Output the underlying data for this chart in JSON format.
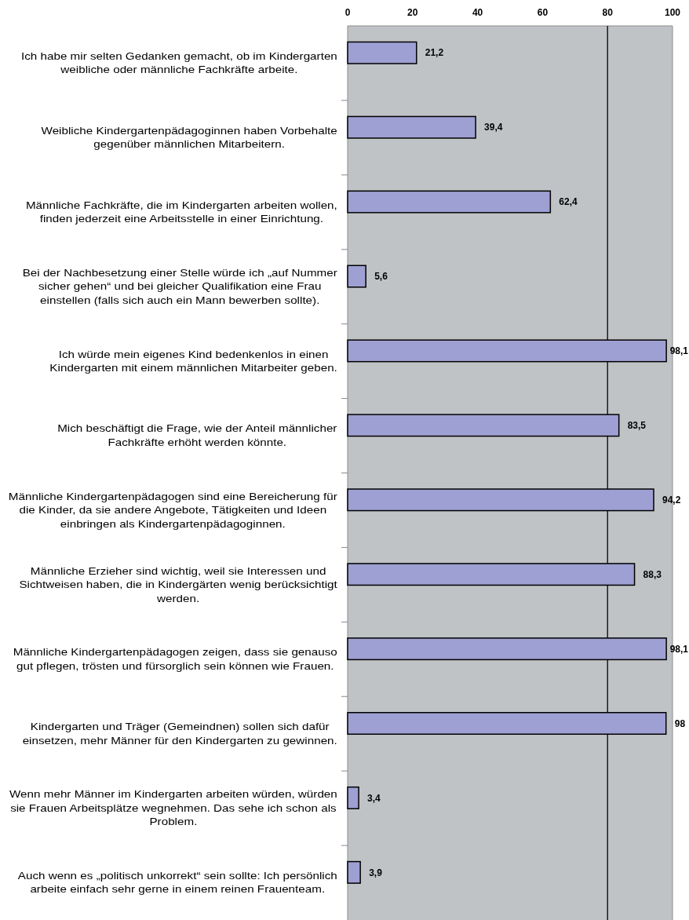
{
  "chart_data": {
    "type": "bar",
    "orientation": "horizontal",
    "categories": [
      "Ich habe mir selten Gedanken gemacht, ob im Kindergarten weibliche oder männliche Fachkräfte arbeite.",
      "Weibliche Kindergartenpädagoginnen haben Vorbehalte gegenüber männlichen Mitarbeitern.",
      "Männliche Fachkräfte, die im Kindergarten arbeiten wollen, finden jederzeit eine Arbeitsstelle in einer Einrichtung.",
      "Bei der Nachbesetzung einer Stelle würde ich „auf Nummer sicher gehen“ und bei gleicher Qualifikation eine Frau einstellen (falls sich auch ein Mann bewerben sollte).",
      "Ich würde mein eigenes Kind bedenkenlos in einen Kindergarten mit einem männlichen Mitarbeiter geben.",
      "Mich beschäftigt die Frage, wie der Anteil männlicher Fachkräfte erhöht werden könnte.",
      "Männliche Kindergartenpädagogen sind eine Bereicherung für die Kinder, da sie andere Angebote, Tätigkeiten und Ideen einbringen als Kindergartenpädagoginnen.",
      "Männliche Erzieher sind wichtig, weil sie Interessen und Sichtweisen haben, die in Kindergärten wenig berücksichtigt werden.",
      "Männliche Kindergartenpädagogen zeigen, dass sie genauso gut pflegen, trösten und fürsorglich sein können wie Frauen.",
      "Kindergarten und Träger (Gemeindnen) sollen sich dafür einsetzen, mehr Männer für den Kindergarten zu gewinnen.",
      "Wenn mehr Männer im Kindergarten arbeiten würden, würden sie Frauen Arbeitsplätze wegnehmen. Das sehe ich schon als Problem.",
      "Auch wenn es „politisch unkorrekt“ sein sollte: Ich persönlich arbeite einfach sehr gerne in einem reinen Frauenteam."
    ],
    "values": [
      21.2,
      39.4,
      62.4,
      5.6,
      98.1,
      83.5,
      94.2,
      88.3,
      98.1,
      98,
      3.4,
      3.9
    ],
    "value_labels": [
      "21,2",
      "39,4",
      "62,4",
      "5,6",
      "98,1",
      "83,5",
      "94,2",
      "88,3",
      "98,1",
      "98",
      "3,4",
      "3,9"
    ],
    "color": "#9e9fd2",
    "xlim": [
      0,
      100
    ],
    "xticks": [
      0,
      20,
      40,
      60,
      80,
      100
    ],
    "ref_lines": [
      {
        "axis": "x",
        "value": 80,
        "color": "#000000"
      }
    ]
  }
}
